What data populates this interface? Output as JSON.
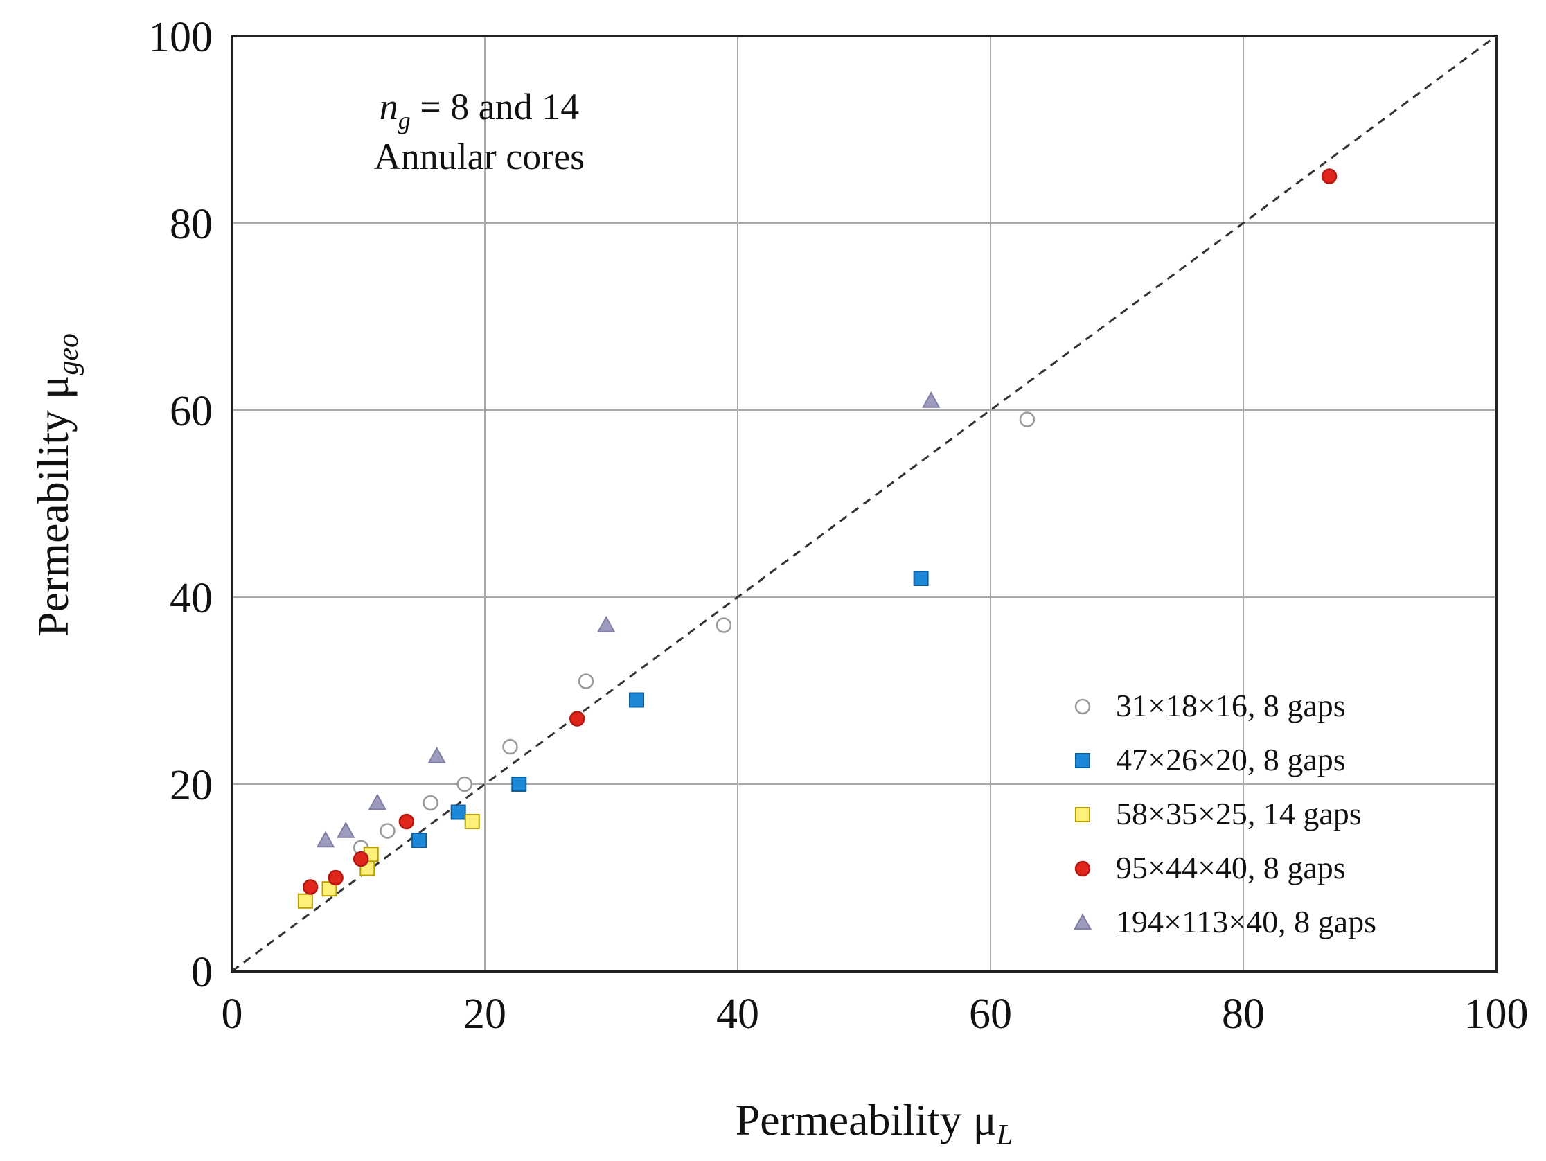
{
  "chart_data": {
    "type": "scatter",
    "xlabel": "Permeability μ",
    "xlabel_sub": "L",
    "ylabel": "Permeability μ",
    "ylabel_sub": "geo",
    "xlim": [
      0,
      100
    ],
    "ylim": [
      0,
      100
    ],
    "xticks": [
      "0",
      "20",
      "40",
      "60",
      "80",
      "100"
    ],
    "yticks": [
      "0",
      "20",
      "40",
      "60",
      "80",
      "100"
    ],
    "grid": true,
    "reference_line": {
      "style": "dashed",
      "from": [
        0,
        0
      ],
      "to": [
        100,
        100
      ]
    },
    "annotation": {
      "line1_var": "n",
      "line1_sub": "g",
      "line1_rest": " = 8 and 14",
      "line2": "Annular cores"
    },
    "legend_position": "bottom-right",
    "series": [
      {
        "name": "31×18×16, 8 gaps",
        "marker": "circle-open",
        "color": "#ffffff",
        "edge": "#9a9a9a",
        "points": [
          [
            10.2,
            13.2
          ],
          [
            12.3,
            15.0
          ],
          [
            15.7,
            18.0
          ],
          [
            18.4,
            20.0
          ],
          [
            22.0,
            24.0
          ],
          [
            28.0,
            31.0
          ],
          [
            38.9,
            37.0
          ],
          [
            62.9,
            59.0
          ]
        ]
      },
      {
        "name": "47×26×20, 8 gaps",
        "marker": "square",
        "color": "#1e88d8",
        "edge": "#0d5fa0",
        "points": [
          [
            14.8,
            14.0
          ],
          [
            17.9,
            17.0
          ],
          [
            22.7,
            20.0
          ],
          [
            32.0,
            29.0
          ],
          [
            54.5,
            42.0
          ]
        ]
      },
      {
        "name": "58×35×25, 14 gaps",
        "marker": "square",
        "color": "#fff07a",
        "edge": "#b8a000",
        "points": [
          [
            5.8,
            7.5
          ],
          [
            7.7,
            8.8
          ],
          [
            10.7,
            11.0
          ],
          [
            11.0,
            12.5
          ],
          [
            19.0,
            16.0
          ]
        ]
      },
      {
        "name": "95×44×40, 8 gaps",
        "marker": "circle",
        "color": "#e0261c",
        "edge": "#b51a12",
        "points": [
          [
            6.2,
            9.0
          ],
          [
            8.2,
            10.0
          ],
          [
            10.2,
            12.0
          ],
          [
            13.8,
            16.0
          ],
          [
            27.3,
            27.0
          ],
          [
            86.8,
            85.0
          ]
        ]
      },
      {
        "name": "194×113×40, 8 gaps",
        "marker": "triangle",
        "color": "#9d9cbf",
        "edge": "#7f7ea3",
        "points": [
          [
            7.4,
            14.0
          ],
          [
            9.0,
            15.0
          ],
          [
            11.5,
            18.0
          ],
          [
            16.2,
            23.0
          ],
          [
            29.6,
            37.0
          ],
          [
            55.3,
            61.0
          ]
        ]
      }
    ]
  }
}
